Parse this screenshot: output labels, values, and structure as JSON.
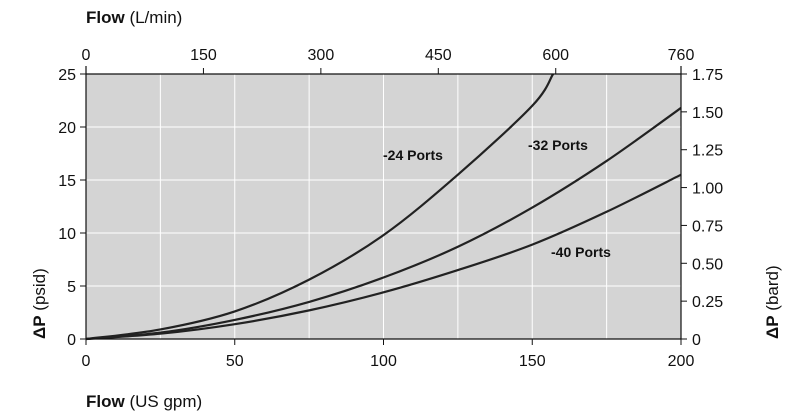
{
  "chart_data": {
    "type": "line",
    "title": "",
    "xlabel": {
      "bold": "Flow",
      "rest": " (US gpm)"
    },
    "x2label": {
      "bold": "Flow",
      "rest": " (L/min)"
    },
    "ylabel": {
      "bold": "ΔP",
      "rest": " (psid)"
    },
    "y2label": {
      "bold": "ΔP",
      "rest": " (bard)"
    },
    "xlim": [
      0,
      200
    ],
    "ylim": [
      0,
      25
    ],
    "x_ticks": [
      0,
      50,
      100,
      150,
      200
    ],
    "y_ticks": [
      0,
      5,
      10,
      15,
      20,
      25
    ],
    "x2_ticks": [
      {
        "label": "0",
        "value": 0
      },
      {
        "label": "150",
        "value": 150
      },
      {
        "label": "300",
        "value": 300
      },
      {
        "label": "450",
        "value": 450
      },
      {
        "label": "600",
        "value": 600
      },
      {
        "label": "760",
        "value": 760
      }
    ],
    "x2_per_x": 3.8,
    "y2_ticks": [
      {
        "label": "0",
        "value": 0
      },
      {
        "label": "0.25",
        "value": 0.25
      },
      {
        "label": "0.50",
        "value": 0.5
      },
      {
        "label": "0.75",
        "value": 0.75
      },
      {
        "label": "1.00",
        "value": 1.0
      },
      {
        "label": "1.25",
        "value": 1.25
      },
      {
        "label": "1.50",
        "value": 1.5
      },
      {
        "label": "1.75",
        "value": 1.75
      }
    ],
    "y2_per_y": 0.07,
    "grid": true,
    "series": [
      {
        "name": "-24 Ports",
        "x": [
          0,
          25,
          50,
          75,
          100,
          125,
          150,
          157
        ],
        "y": [
          0,
          0.9,
          2.6,
          5.6,
          9.8,
          15.5,
          22.0,
          25.0
        ]
      },
      {
        "name": "-32 Ports",
        "x": [
          0,
          25,
          50,
          75,
          100,
          125,
          150,
          175,
          200
        ],
        "y": [
          0,
          0.6,
          1.8,
          3.5,
          5.8,
          8.7,
          12.4,
          16.8,
          21.8
        ]
      },
      {
        "name": "-40 Ports",
        "x": [
          0,
          25,
          50,
          75,
          100,
          125,
          150,
          175,
          200
        ],
        "y": [
          0,
          0.5,
          1.4,
          2.7,
          4.4,
          6.5,
          8.9,
          12.0,
          15.5
        ]
      }
    ]
  }
}
